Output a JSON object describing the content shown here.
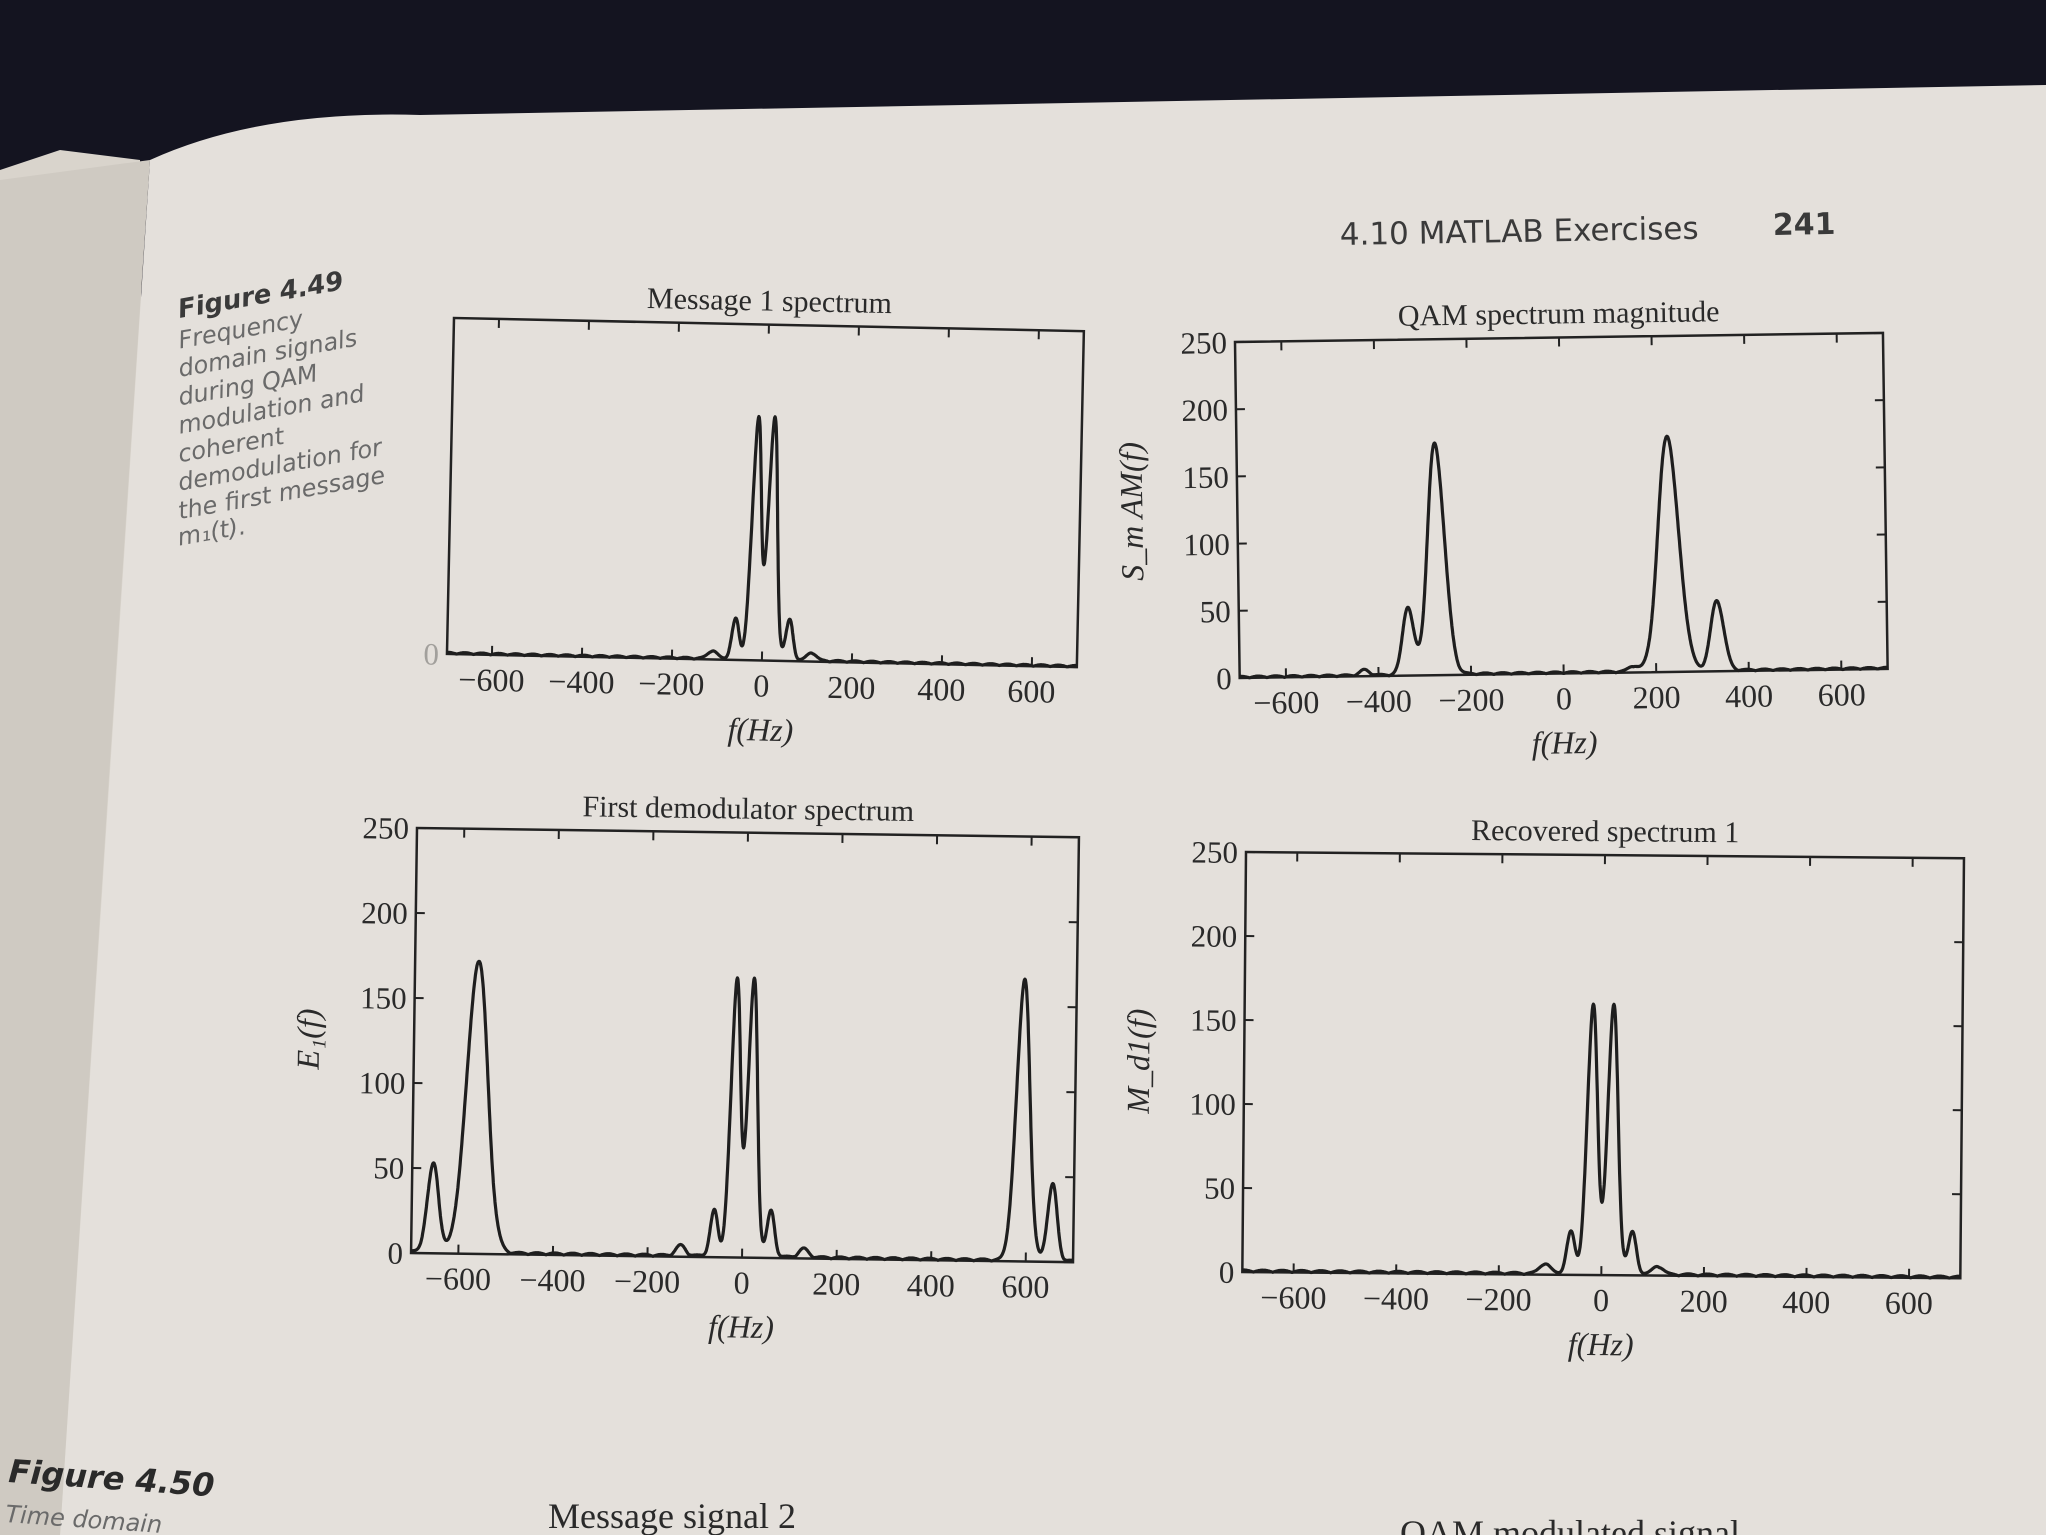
{
  "header": {
    "section": "4.10 MATLAB Exercises",
    "page_number": "241"
  },
  "caption_449": {
    "label": "Figure 4.49",
    "lines": [
      "Frequency",
      "domain signals",
      "during QAM",
      "modulation and",
      "coherent",
      "demodulation for",
      "the first message",
      "m₁(t)."
    ]
  },
  "caption_450": {
    "label": "Figure 4.50",
    "lines": [
      "Time domain"
    ]
  },
  "bottom_titles": [
    "Message signal 2",
    "QAM modulated signal"
  ],
  "colors": {
    "page": "#e4e0db",
    "ink": "#1e1e1e",
    "background": "#141420"
  },
  "chart_data": [
    {
      "type": "line",
      "title": "Message 1 spectrum",
      "xlabel": "f(Hz)",
      "ylabel": "",
      "xlim": [
        -700,
        700
      ],
      "ylim": [
        0,
        250
      ],
      "xticks": [
        -600,
        -400,
        -200,
        0,
        200,
        400,
        600
      ],
      "yticks": [
        0
      ],
      "peaks": [
        {
          "f": -60,
          "height": 30,
          "width_hz": 8
        },
        {
          "f": -18,
          "height": 180,
          "width_hz": 10
        },
        {
          "f": 18,
          "height": 180,
          "width_hz": 10
        },
        {
          "f": 60,
          "height": 30,
          "width_hz": 8
        },
        {
          "f": -110,
          "height": 6,
          "width_hz": 10
        },
        {
          "f": 110,
          "height": 6,
          "width_hz": 10
        }
      ]
    },
    {
      "type": "line",
      "title": "QAM spectrum magnitude",
      "xlabel": "f(Hz)",
      "ylabel": "S_m AM(f)",
      "xlim": [
        -700,
        700
      ],
      "ylim": [
        0,
        250
      ],
      "xticks": [
        -600,
        -400,
        -200,
        0,
        200,
        400,
        600
      ],
      "yticks": [
        0,
        50,
        100,
        150,
        200,
        250
      ],
      "peaks": [
        {
          "f": -335,
          "height": 50,
          "width_hz": 12
        },
        {
          "f": -272,
          "height": 172,
          "width_hz": 18
        },
        {
          "f": 230,
          "height": 175,
          "width_hz": 22
        },
        {
          "f": 333,
          "height": 52,
          "width_hz": 14
        },
        {
          "f": -430,
          "height": 4,
          "width_hz": 10
        },
        {
          "f": 150,
          "height": 4,
          "width_hz": 10
        }
      ]
    },
    {
      "type": "line",
      "title": "First demodulator spectrum",
      "xlabel": "f(Hz)",
      "ylabel": "E₁(f)",
      "xlim": [
        -700,
        700
      ],
      "ylim": [
        0,
        250
      ],
      "xticks": [
        -600,
        -400,
        -200,
        0,
        200,
        400,
        600
      ],
      "yticks": [
        0,
        50,
        100,
        150,
        200,
        250
      ],
      "peaks": [
        {
          "f": -655,
          "height": 52,
          "width_hz": 12
        },
        {
          "f": -565,
          "height": 172,
          "width_hz": 22
        },
        {
          "f": -60,
          "height": 27,
          "width_hz": 8
        },
        {
          "f": -18,
          "height": 163,
          "width_hz": 10
        },
        {
          "f": 18,
          "height": 163,
          "width_hz": 10
        },
        {
          "f": 60,
          "height": 27,
          "width_hz": 8
        },
        {
          "f": 590,
          "height": 165,
          "width_hz": 14
        },
        {
          "f": 655,
          "height": 45,
          "width_hz": 10
        },
        {
          "f": -130,
          "height": 6,
          "width_hz": 10
        },
        {
          "f": 130,
          "height": 5,
          "width_hz": 10
        }
      ]
    },
    {
      "type": "line",
      "title": "Recovered spectrum 1",
      "xlabel": "f(Hz)",
      "ylabel": "M_d1(f)",
      "xlim": [
        -700,
        700
      ],
      "ylim": [
        0,
        250
      ],
      "xticks": [
        -600,
        -400,
        -200,
        0,
        200,
        400,
        600
      ],
      "yticks": [
        0,
        50,
        100,
        150,
        200,
        250
      ],
      "peaks": [
        {
          "f": -60,
          "height": 25,
          "width_hz": 8
        },
        {
          "f": -20,
          "height": 160,
          "width_hz": 10
        },
        {
          "f": 20,
          "height": 160,
          "width_hz": 10
        },
        {
          "f": 60,
          "height": 25,
          "width_hz": 8
        },
        {
          "f": -110,
          "height": 6,
          "width_hz": 10
        },
        {
          "f": 110,
          "height": 5,
          "width_hz": 10
        }
      ]
    }
  ]
}
